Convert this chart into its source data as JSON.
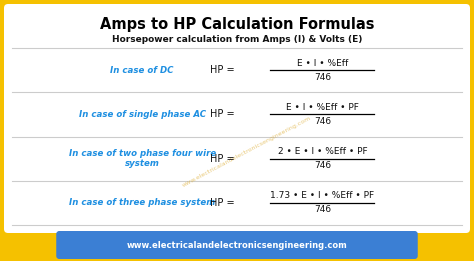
{
  "title": "Amps to HP Calculation Formulas",
  "subtitle": "Horsepower calculation from Amps (I) & Volts (E)",
  "bg_color": "#F5C100",
  "table_bg": "#FFFFFF",
  "title_color": "#000000",
  "subtitle_color": "#111111",
  "label_color": "#1E8FE1",
  "formula_color": "#111111",
  "footer_bg": "#3B7FD4",
  "footer_text": "www.electricalandelectronicsengineering.com",
  "footer_text_color": "#FFFFFF",
  "watermark": "www.electricalandelectronicsengineering.com",
  "watermark_color": "#DAA520",
  "sep_color": "#CCCCCC",
  "rows": [
    {
      "label": "In case of DC",
      "numerator": "E • I • %Eff",
      "denominator": "746"
    },
    {
      "label": "In case of single phase AC",
      "numerator": "E • I • %Eff • PF",
      "denominator": "746"
    },
    {
      "label": "In case of two phase four wire\nsystem",
      "numerator": "2 • E • I • %Eff • PF",
      "denominator": "746"
    },
    {
      "label": "In case of three phase system",
      "numerator": "1.73 • E • I • %Eff • PF",
      "denominator": "746"
    }
  ]
}
